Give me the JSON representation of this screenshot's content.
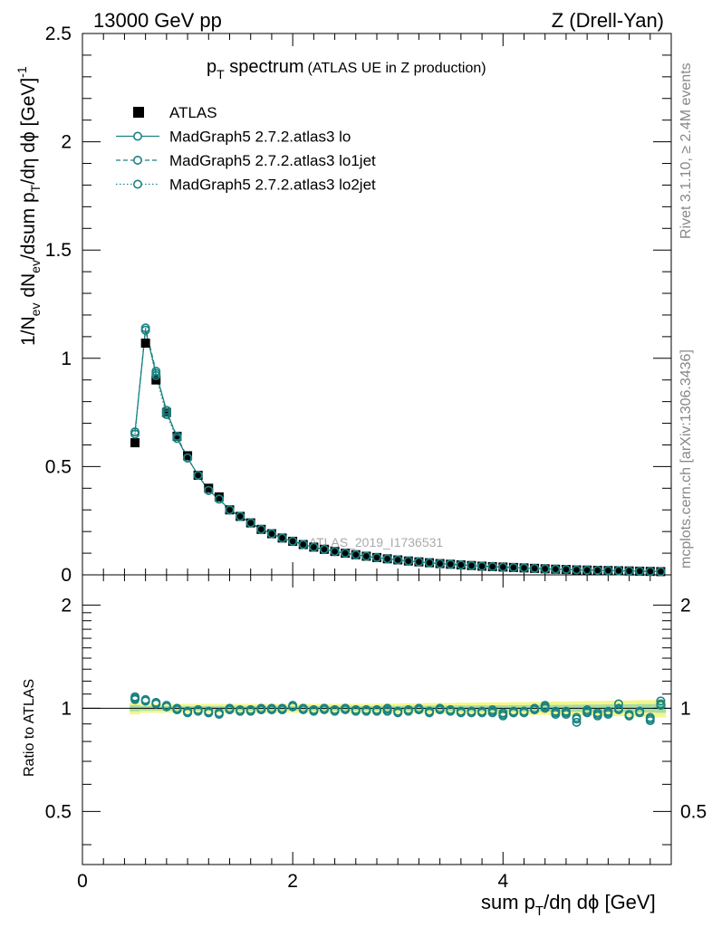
{
  "header": {
    "left": "13000 GeV pp",
    "right": "Z (Drell-Yan)"
  },
  "side": {
    "rivet": "Rivet 3.1.10, ≥ 2.4M events",
    "source": "mcplots.cern.ch [arXiv:1306.3436]"
  },
  "watermark": "ATLAS_2019_I1736531",
  "title": {
    "main_p": "p",
    "main_sub": "T",
    "main_rest": " spectrum",
    "small": "(ATLAS UE in Z production)"
  },
  "ylabel_top": {
    "a": "1/N",
    "a_sub": "ev",
    "b": " dN",
    "b_sub": "ev",
    "c": "/dsum p",
    "c_sub": "T",
    "d": "/dη dϕ  [GeV]",
    "d_sup": "-1"
  },
  "ylabel_bottom": "Ratio to ATLAS",
  "xlabel": {
    "a": "sum p",
    "a_sub": "T",
    "b": "/dη dϕ [GeV]"
  },
  "colors": {
    "mc": "#1a8282",
    "band_yellow": "#f4f68a",
    "band_green": "#a6dca6"
  },
  "legend": [
    {
      "label": "ATLAS",
      "style": "data"
    },
    {
      "label": "MadGraph5 2.7.2.atlas3 lo",
      "style": "solid"
    },
    {
      "label": "MadGraph5 2.7.2.atlas3 lo1jet",
      "style": "dashed"
    },
    {
      "label": "MadGraph5 2.7.2.atlas3 lo2jet",
      "style": "dotted"
    }
  ],
  "chart_data": {
    "type": "scatter",
    "xlim": [
      0,
      5.6
    ],
    "ylim_top": [
      0,
      2.5
    ],
    "ylim_bottom": [
      0.35,
      2.45
    ],
    "xticks": [
      "0",
      "2",
      "4"
    ],
    "yticks_top": [
      "0",
      "0.5",
      "1",
      "1.5",
      "2",
      "2.5"
    ],
    "yticks_bottom": [
      "0.5",
      "1",
      "2"
    ],
    "x": [
      0.5,
      0.6,
      0.7,
      0.8,
      0.9,
      1.0,
      1.1,
      1.2,
      1.3,
      1.4,
      1.5,
      1.6,
      1.7,
      1.8,
      1.9,
      2.0,
      2.1,
      2.2,
      2.3,
      2.4,
      2.5,
      2.6,
      2.7,
      2.8,
      2.9,
      3.0,
      3.1,
      3.2,
      3.3,
      3.4,
      3.5,
      3.6,
      3.7,
      3.8,
      3.9,
      4.0,
      4.1,
      4.2,
      4.3,
      4.4,
      4.5,
      4.6,
      4.7,
      4.8,
      4.9,
      5.0,
      5.1,
      5.2,
      5.3,
      5.4,
      5.5
    ],
    "series": [
      {
        "name": "ATLAS",
        "values": [
          0.61,
          1.07,
          0.9,
          0.75,
          0.64,
          0.55,
          0.46,
          0.4,
          0.36,
          0.3,
          0.27,
          0.24,
          0.21,
          0.19,
          0.17,
          0.155,
          0.14,
          0.128,
          0.118,
          0.108,
          0.1,
          0.093,
          0.086,
          0.08,
          0.074,
          0.069,
          0.064,
          0.06,
          0.056,
          0.052,
          0.049,
          0.046,
          0.043,
          0.04,
          0.038,
          0.036,
          0.034,
          0.032,
          0.03,
          0.028,
          0.026,
          0.025,
          0.023,
          0.022,
          0.021,
          0.02,
          0.019,
          0.018,
          0.017,
          0.016,
          0.015
        ]
      },
      {
        "name": "MadGraph5 2.7.2.atlas3 lo",
        "values": [
          0.66,
          1.13,
          0.93,
          0.76,
          0.63,
          0.54,
          0.46,
          0.39,
          0.35,
          0.3,
          0.27,
          0.24,
          0.21,
          0.19,
          0.17,
          0.155,
          0.14,
          0.128,
          0.118,
          0.108,
          0.1,
          0.093,
          0.086,
          0.08,
          0.074,
          0.069,
          0.064,
          0.06,
          0.056,
          0.052,
          0.049,
          0.046,
          0.043,
          0.04,
          0.038,
          0.036,
          0.034,
          0.032,
          0.03,
          0.028,
          0.026,
          0.025,
          0.023,
          0.022,
          0.021,
          0.02,
          0.019,
          0.018,
          0.017,
          0.016,
          0.015
        ],
        "ratio": [
          1.08,
          1.06,
          1.04,
          1.02,
          0.99,
          0.98,
          0.99,
          0.97,
          0.96,
          1.0,
          0.98,
          0.99,
          1.0,
          0.99,
          0.99,
          1.01,
          1.0,
          0.98,
          1.0,
          0.99,
          0.99,
          0.99,
          0.99,
          0.98,
          1.0,
          0.97,
          0.98,
          1.0,
          0.97,
          1.0,
          0.99,
          0.97,
          0.98,
          0.98,
          0.99,
          0.95,
          0.97,
          0.98,
          0.99,
          1.02,
          0.96,
          0.97,
          0.94,
          0.99,
          0.95,
          0.97,
          1.03,
          0.96,
          0.98,
          0.93,
          1.05
        ]
      },
      {
        "name": "MadGraph5 2.7.2.atlas3 lo1jet",
        "values": [
          0.66,
          1.14,
          0.94,
          0.75,
          0.64,
          0.54,
          0.46,
          0.39,
          0.35,
          0.3,
          0.27,
          0.24,
          0.21,
          0.19,
          0.17,
          0.155,
          0.14,
          0.128,
          0.118,
          0.108,
          0.1,
          0.093,
          0.086,
          0.08,
          0.074,
          0.069,
          0.064,
          0.06,
          0.056,
          0.052,
          0.049,
          0.046,
          0.043,
          0.04,
          0.038,
          0.036,
          0.034,
          0.032,
          0.03,
          0.028,
          0.026,
          0.025,
          0.023,
          0.022,
          0.021,
          0.02,
          0.019,
          0.018,
          0.017,
          0.016,
          0.015
        ],
        "ratio": [
          1.07,
          1.05,
          1.03,
          1.01,
          0.99,
          0.98,
          0.98,
          0.97,
          0.97,
          0.99,
          0.98,
          0.99,
          0.99,
          1.0,
          0.99,
          1.02,
          1.0,
          0.99,
          0.99,
          0.99,
          1.0,
          0.98,
          0.99,
          0.99,
          0.99,
          0.98,
          0.99,
          0.99,
          0.98,
          0.99,
          0.98,
          0.98,
          0.98,
          0.97,
          0.98,
          0.96,
          0.97,
          0.97,
          1.0,
          1.0,
          0.97,
          0.96,
          0.91,
          0.98,
          0.96,
          0.96,
          1.0,
          0.95,
          0.97,
          0.92,
          1.03
        ]
      },
      {
        "name": "MadGraph5 2.7.2.atlas3 lo2jet",
        "values": [
          0.65,
          1.13,
          0.92,
          0.74,
          0.63,
          0.54,
          0.46,
          0.39,
          0.35,
          0.3,
          0.27,
          0.24,
          0.21,
          0.19,
          0.17,
          0.155,
          0.14,
          0.128,
          0.118,
          0.108,
          0.1,
          0.093,
          0.086,
          0.08,
          0.074,
          0.069,
          0.064,
          0.06,
          0.056,
          0.052,
          0.049,
          0.046,
          0.043,
          0.04,
          0.038,
          0.036,
          0.034,
          0.032,
          0.03,
          0.028,
          0.026,
          0.025,
          0.023,
          0.022,
          0.021,
          0.02,
          0.019,
          0.018,
          0.017,
          0.016,
          0.015
        ],
        "ratio": [
          1.06,
          1.05,
          1.03,
          1.01,
          1.0,
          0.97,
          0.99,
          0.98,
          0.97,
          0.99,
          0.99,
          0.98,
          0.99,
          0.99,
          1.0,
          1.01,
          0.99,
          0.99,
          1.0,
          0.98,
          1.0,
          0.99,
          0.98,
          0.99,
          0.98,
          0.98,
          0.99,
          0.99,
          0.98,
          0.99,
          0.99,
          0.98,
          0.97,
          0.98,
          0.97,
          0.97,
          0.98,
          0.98,
          0.99,
          1.01,
          0.98,
          0.98,
          0.93,
          0.97,
          0.97,
          0.98,
          0.99,
          0.95,
          0.98,
          0.94,
          1.02
        ]
      }
    ],
    "band_halfwidth": [
      0.02,
      0.015,
      0.015,
      0.015,
      0.015,
      0.015,
      0.015,
      0.015,
      0.015,
      0.015,
      0.015,
      0.015,
      0.015,
      0.015,
      0.015,
      0.015,
      0.015,
      0.015,
      0.015,
      0.015,
      0.015,
      0.015,
      0.015,
      0.015,
      0.016,
      0.016,
      0.017,
      0.017,
      0.018,
      0.018,
      0.018,
      0.019,
      0.019,
      0.02,
      0.02,
      0.02,
      0.021,
      0.021,
      0.022,
      0.022,
      0.023,
      0.023,
      0.024,
      0.025,
      0.025,
      0.026,
      0.026,
      0.027,
      0.028,
      0.028,
      0.03
    ]
  }
}
